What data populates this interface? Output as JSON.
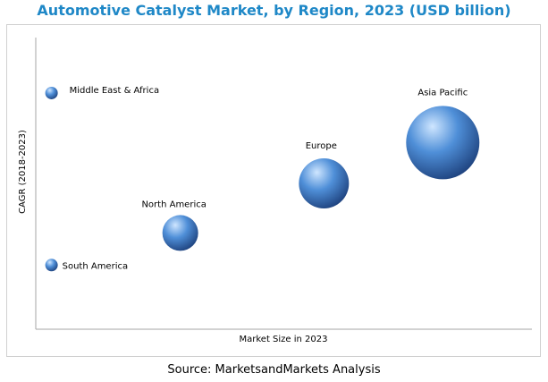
{
  "chart_data": {
    "type": "scatter",
    "title": "Automotive Catalyst Market, by Region, 2023 (USD billion)",
    "xlabel": "Market Size in 2023",
    "ylabel": "CAGR (2018-2023)",
    "xlim": [
      0,
      100
    ],
    "ylim": [
      0,
      100
    ],
    "grid": false,
    "legend": "none",
    "series": [
      {
        "label": "Middle East & Africa",
        "x": 3,
        "y": 81,
        "size": 7
      },
      {
        "label": "South America",
        "x": 3,
        "y": 22,
        "size": 7
      },
      {
        "label": "North America",
        "x": 29,
        "y": 33,
        "size": 20
      },
      {
        "label": "Europe",
        "x": 58,
        "y": 50,
        "size": 28
      },
      {
        "label": "Asia Pacific",
        "x": 82,
        "y": 64,
        "size": 41
      }
    ],
    "colors": {
      "title": "#1f88c7",
      "bubble_light": "#cfe6ff",
      "bubble_mid": "#4f8fd8",
      "bubble_dark": "#1b3d78"
    }
  },
  "source": "Source: MarketsandMarkets Analysis"
}
